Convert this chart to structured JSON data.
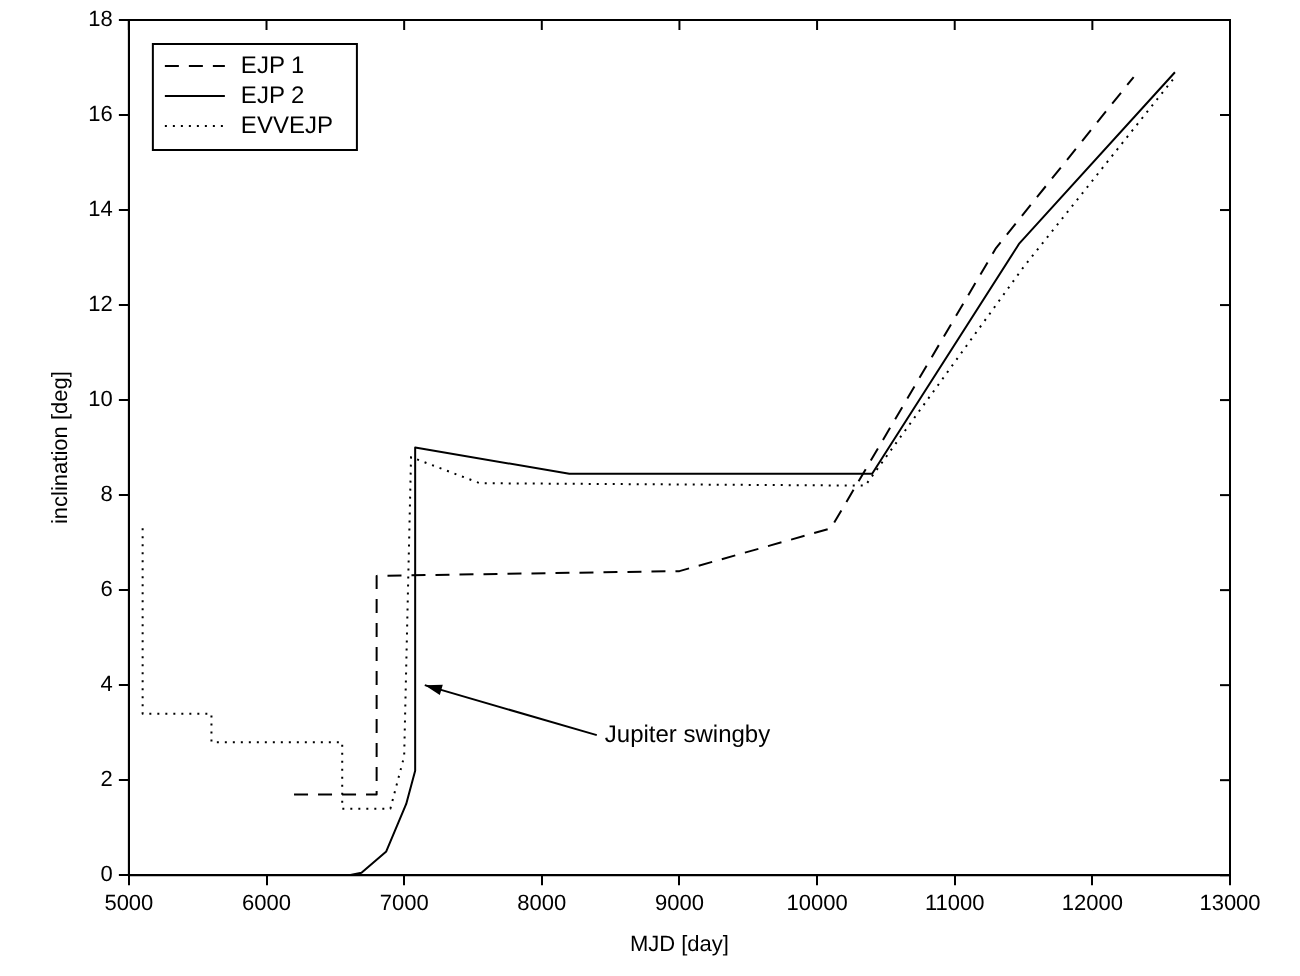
{
  "chart_data": {
    "type": "line",
    "xlabel": "MJD [day]",
    "ylabel": "inclination [deg]",
    "xlim": [
      5000,
      13000
    ],
    "xticks": [
      5000,
      6000,
      7000,
      8000,
      9000,
      10000,
      11000,
      12000,
      13000
    ],
    "ylim": [
      0,
      18
    ],
    "yticks": [
      0,
      2,
      4,
      6,
      8,
      10,
      12,
      14,
      16,
      18
    ],
    "grid": false,
    "legend": "top left",
    "marker": "none",
    "annotations": [
      {
        "text": "Jupiter swingby",
        "x": 7150,
        "y": 4
      }
    ],
    "series": [
      {
        "name": "EJP 1",
        "color": "#000000",
        "line_style": "dashed",
        "x": [
          6200,
          6800,
          6800,
          9000,
          10100,
          11300,
          12300
        ],
        "values": [
          1.7,
          1.7,
          6.3,
          6.4,
          7.3,
          13.2,
          16.8
        ]
      },
      {
        "name": "EJP 2",
        "color": "#000000",
        "line_style": "solid",
        "x": [
          6600,
          6690,
          6870,
          7015,
          7080,
          7080,
          8200,
          10400,
          11470,
          12600
        ],
        "values": [
          0,
          0.05,
          0.5,
          1.5,
          2.2,
          9.0,
          8.45,
          8.45,
          13.3,
          16.9
        ]
      },
      {
        "name": "EVVEJP",
        "color": "#000000",
        "line_style": "dotted",
        "x": [
          5100,
          5100,
          5600,
          5600,
          6550,
          6550,
          6900,
          7000,
          7050,
          7550,
          10350,
          11500,
          12600
        ],
        "values": [
          7.3,
          3.4,
          3.4,
          2.8,
          2.8,
          1.4,
          1.4,
          2.5,
          8.8,
          8.25,
          8.2,
          12.8,
          16.8
        ]
      }
    ]
  }
}
